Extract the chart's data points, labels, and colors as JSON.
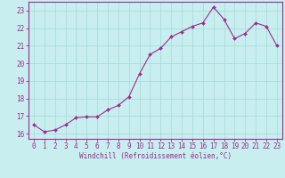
{
  "x": [
    0,
    1,
    2,
    3,
    4,
    5,
    6,
    7,
    8,
    9,
    10,
    11,
    12,
    13,
    14,
    15,
    16,
    17,
    18,
    19,
    20,
    21,
    22,
    23
  ],
  "y": [
    16.5,
    16.1,
    16.2,
    16.5,
    16.9,
    16.95,
    16.95,
    17.35,
    17.6,
    18.1,
    19.4,
    20.5,
    20.85,
    21.5,
    21.8,
    22.1,
    22.3,
    23.2,
    22.5,
    21.4,
    21.7,
    22.3,
    22.1,
    21.0
  ],
  "line_color": "#9b2d8e",
  "marker": "D",
  "marker_size": 2.0,
  "bg_color": "#c8eef0",
  "grid_color": "#aadddd",
  "xlabel": "Windchill (Refroidissement éolien,°C)",
  "ylabel_ticks": [
    16,
    17,
    18,
    19,
    20,
    21,
    22,
    23
  ],
  "xlabel_ticks": [
    0,
    1,
    2,
    3,
    4,
    5,
    6,
    7,
    8,
    9,
    10,
    11,
    12,
    13,
    14,
    15,
    16,
    17,
    18,
    19,
    20,
    21,
    22,
    23
  ],
  "ylim": [
    15.7,
    23.5
  ],
  "xlim": [
    -0.5,
    23.5
  ],
  "tick_fontsize": 5.5,
  "xlabel_fontsize": 5.5,
  "linewidth": 0.8
}
